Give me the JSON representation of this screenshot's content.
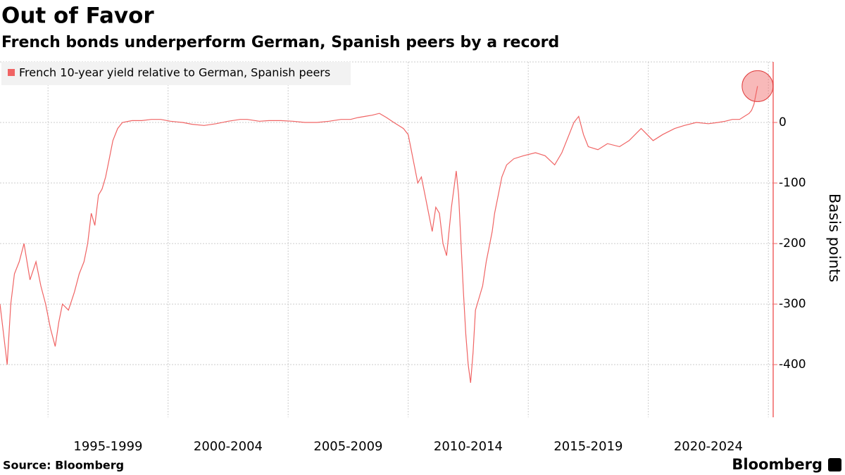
{
  "chart_data": {
    "type": "line",
    "title": "Out of Favor",
    "subtitle": "French bonds underperform German, Spanish peers by a record",
    "y_label": "Basis points",
    "source": "Source: Bloomberg",
    "brand": "Bloomberg",
    "categories": [
      "1995-1999",
      "2000-2004",
      "2005-2009",
      "2010-2014",
      "2015-2019",
      "2020-2024"
    ],
    "xlim": [
      1993,
      2025.2
    ],
    "xticks": [
      1995,
      2000,
      2005,
      2010,
      2015,
      2020,
      2025
    ],
    "ylim": [
      -487,
      100
    ],
    "yticks": [
      -400,
      -300,
      -200,
      -100,
      0
    ],
    "grid": true,
    "legend": "top-left",
    "x": [
      1993.0,
      1993.15,
      1993.3,
      1993.45,
      1993.6,
      1993.8,
      1994.0,
      1994.25,
      1994.5,
      1994.7,
      1994.9,
      1995.1,
      1995.3,
      1995.45,
      1995.6,
      1995.85,
      1996.1,
      1996.3,
      1996.5,
      1996.65,
      1996.8,
      1996.95,
      1997.1,
      1997.25,
      1997.4,
      1997.55,
      1997.7,
      1997.9,
      1998.1,
      1998.5,
      1998.9,
      1999.3,
      1999.7,
      2000.1,
      2000.6,
      2001.0,
      2001.5,
      2002.0,
      2002.5,
      2003.0,
      2003.3,
      2003.8,
      2004.2,
      2004.7,
      2005.2,
      2005.7,
      2006.2,
      2006.7,
      2007.2,
      2007.6,
      2007.9,
      2008.2,
      2008.5,
      2008.8,
      2009.1,
      2009.4,
      2009.6,
      2009.8,
      2010.0,
      2010.1,
      2010.25,
      2010.4,
      2010.55,
      2010.7,
      2010.85,
      2011.0,
      2011.15,
      2011.3,
      2011.45,
      2011.6,
      2011.8,
      2012.0,
      2012.1,
      2012.2,
      2012.3,
      2012.4,
      2012.5,
      2012.6,
      2012.7,
      2012.8,
      2012.95,
      2013.1,
      2013.25,
      2013.4,
      2013.5,
      2013.6,
      2013.75,
      2013.9,
      2014.1,
      2014.4,
      2014.8,
      2015.3,
      2015.7,
      2016.1,
      2016.4,
      2016.7,
      2016.9,
      2017.1,
      2017.3,
      2017.5,
      2017.9,
      2018.3,
      2018.8,
      2019.2,
      2019.7,
      2020.2,
      2020.6,
      2021.1,
      2021.5,
      2022.0,
      2022.5,
      2022.9,
      2023.2,
      2023.5,
      2023.8,
      2024.0,
      2024.2,
      2024.3,
      2024.4,
      2024.5,
      2024.55
    ],
    "series": [
      {
        "name": "French 10-year yield relative to German, Spanish peers",
        "color": "#f06464",
        "values": [
          -300,
          -350,
          -400,
          -300,
          -250,
          -230,
          -200,
          -260,
          -230,
          -270,
          -300,
          -340,
          -370,
          -330,
          -300,
          -310,
          -280,
          -250,
          -230,
          -200,
          -150,
          -170,
          -120,
          -110,
          -90,
          -60,
          -30,
          -10,
          0,
          3,
          3,
          5,
          5,
          2,
          0,
          -3,
          -5,
          -2,
          2,
          5,
          5,
          2,
          3,
          3,
          2,
          0,
          0,
          2,
          5,
          5,
          8,
          10,
          12,
          15,
          8,
          0,
          -5,
          -10,
          -20,
          -40,
          -70,
          -100,
          -90,
          -120,
          -150,
          -180,
          -140,
          -150,
          -200,
          -220,
          -140,
          -80,
          -120,
          -200,
          -280,
          -350,
          -400,
          -430,
          -380,
          -310,
          -290,
          -270,
          -230,
          -200,
          -180,
          -150,
          -120,
          -90,
          -70,
          -60,
          -55,
          -50,
          -55,
          -70,
          -50,
          -20,
          0,
          10,
          -20,
          -40,
          -45,
          -35,
          -40,
          -30,
          -10,
          -30,
          -20,
          -10,
          -5,
          0,
          -2,
          0,
          2,
          5,
          5,
          10,
          15,
          20,
          30,
          50,
          60
        ]
      }
    ]
  }
}
